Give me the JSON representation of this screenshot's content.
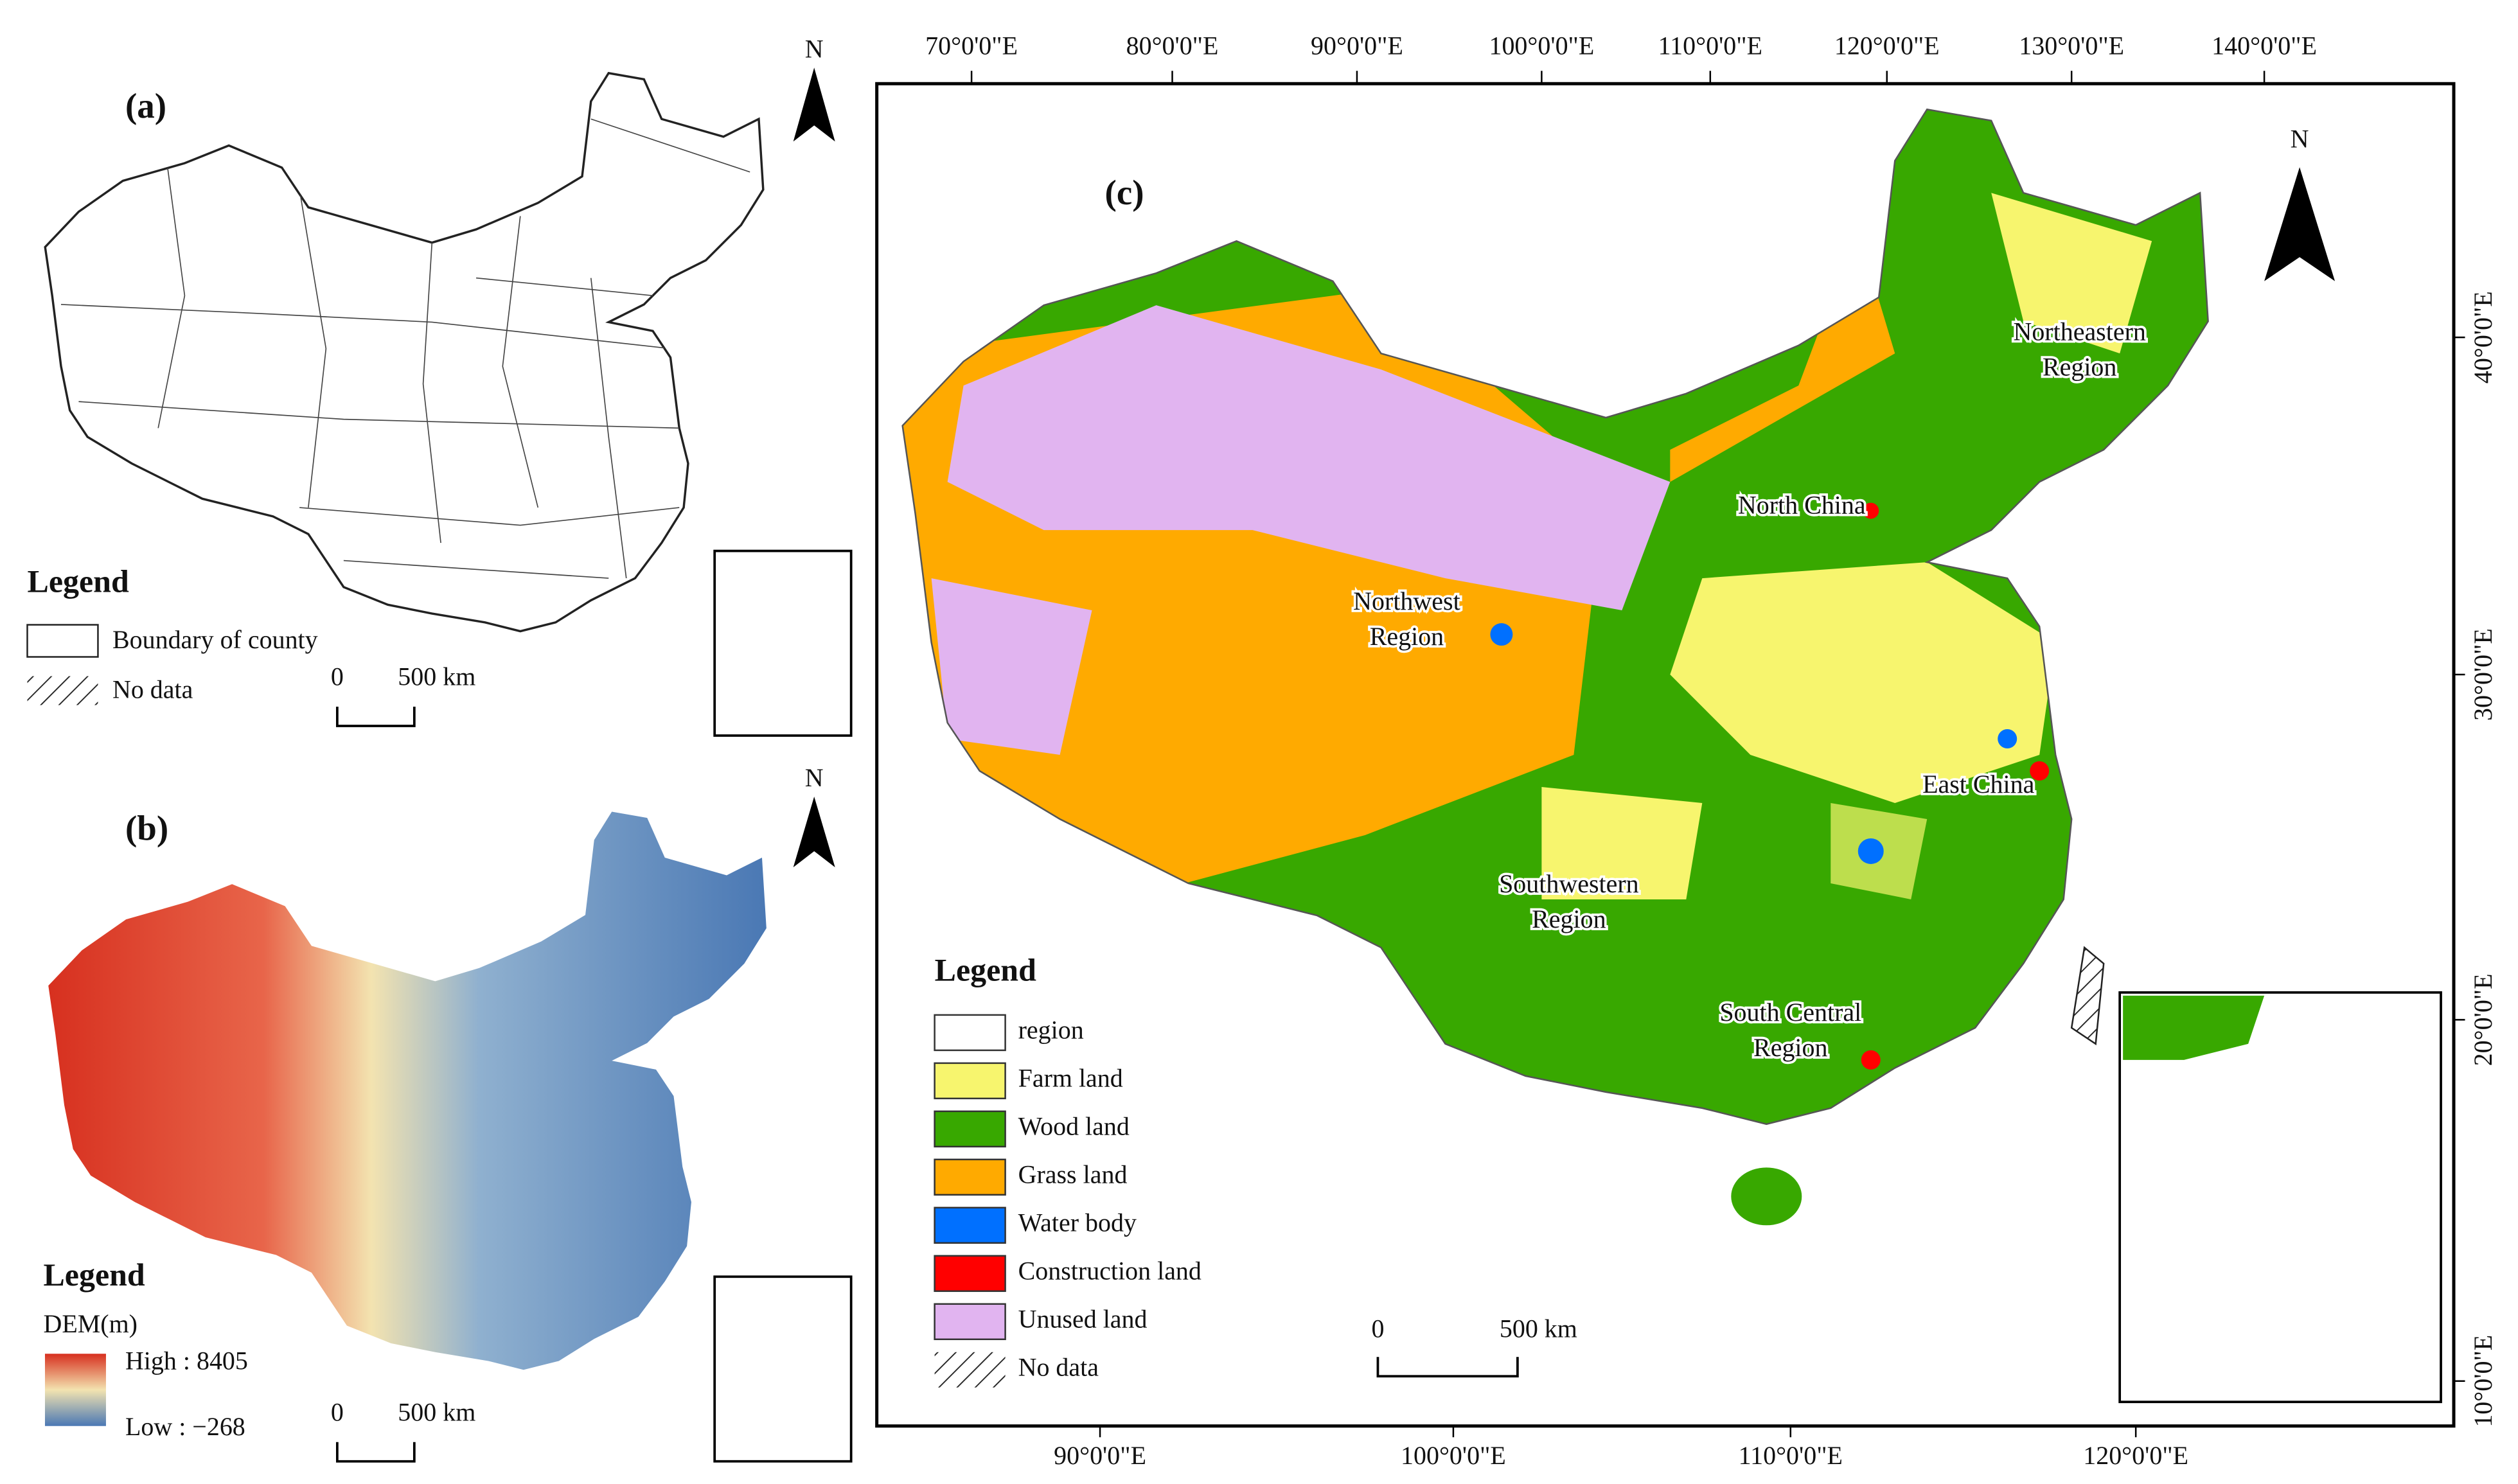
{
  "panel_a": {
    "label": "(a)",
    "north": "N",
    "legend_title": "Legend",
    "legend_items": [
      "Boundary of county",
      "No data"
    ],
    "scale_zero": "0",
    "scale_distance": "500 km"
  },
  "panel_b": {
    "label": "(b)",
    "north": "N",
    "legend_title": "Legend",
    "legend_subtitle": "DEM(m)",
    "legend_high": "High : 8405",
    "legend_low": "Low : −268",
    "scale_zero": "0",
    "scale_distance": "500 km"
  },
  "panel_c": {
    "label": "(c)",
    "north": "N",
    "top_ticks": [
      "70°0'0\"E",
      "80°0'0\"E",
      "90°0'0\"E",
      "100°0'0\"E",
      "110°0'0\"E",
      "120°0'0\"E",
      "130°0'0\"E",
      "140°0'0\"E"
    ],
    "bottom_ticks": [
      "90°0'0\"E",
      "100°0'0\"E",
      "110°0'0\"E",
      "120°0'0\"E"
    ],
    "right_ticks": [
      "40°0'0\"E",
      "30°0'0\"E",
      "20°0'0\"E",
      "10°0'0\"E"
    ],
    "regions": [
      [
        "Northeastern",
        "Region"
      ],
      [
        "North China"
      ],
      [
        "Northwest",
        "Region"
      ],
      [
        "East China"
      ],
      [
        "Southwestern",
        "Region"
      ],
      [
        "South Central",
        "Region"
      ]
    ],
    "legend_title": "Legend",
    "legend_items": [
      {
        "label": "region",
        "color": "#ffffff"
      },
      {
        "label": "Farm land",
        "color": "#f7f56e"
      },
      {
        "label": "Wood land",
        "color": "#38a800"
      },
      {
        "label": "Grass land",
        "color": "#ffaa00"
      },
      {
        "label": "Water body",
        "color": "#0070ff"
      },
      {
        "label": "Construction land",
        "color": "#ff0000"
      },
      {
        "label": "Unused land",
        "color": "#e1b4f0"
      },
      {
        "label": "No data",
        "color": "hatch"
      }
    ],
    "scale_zero": "0",
    "scale_distance": "500 km"
  }
}
